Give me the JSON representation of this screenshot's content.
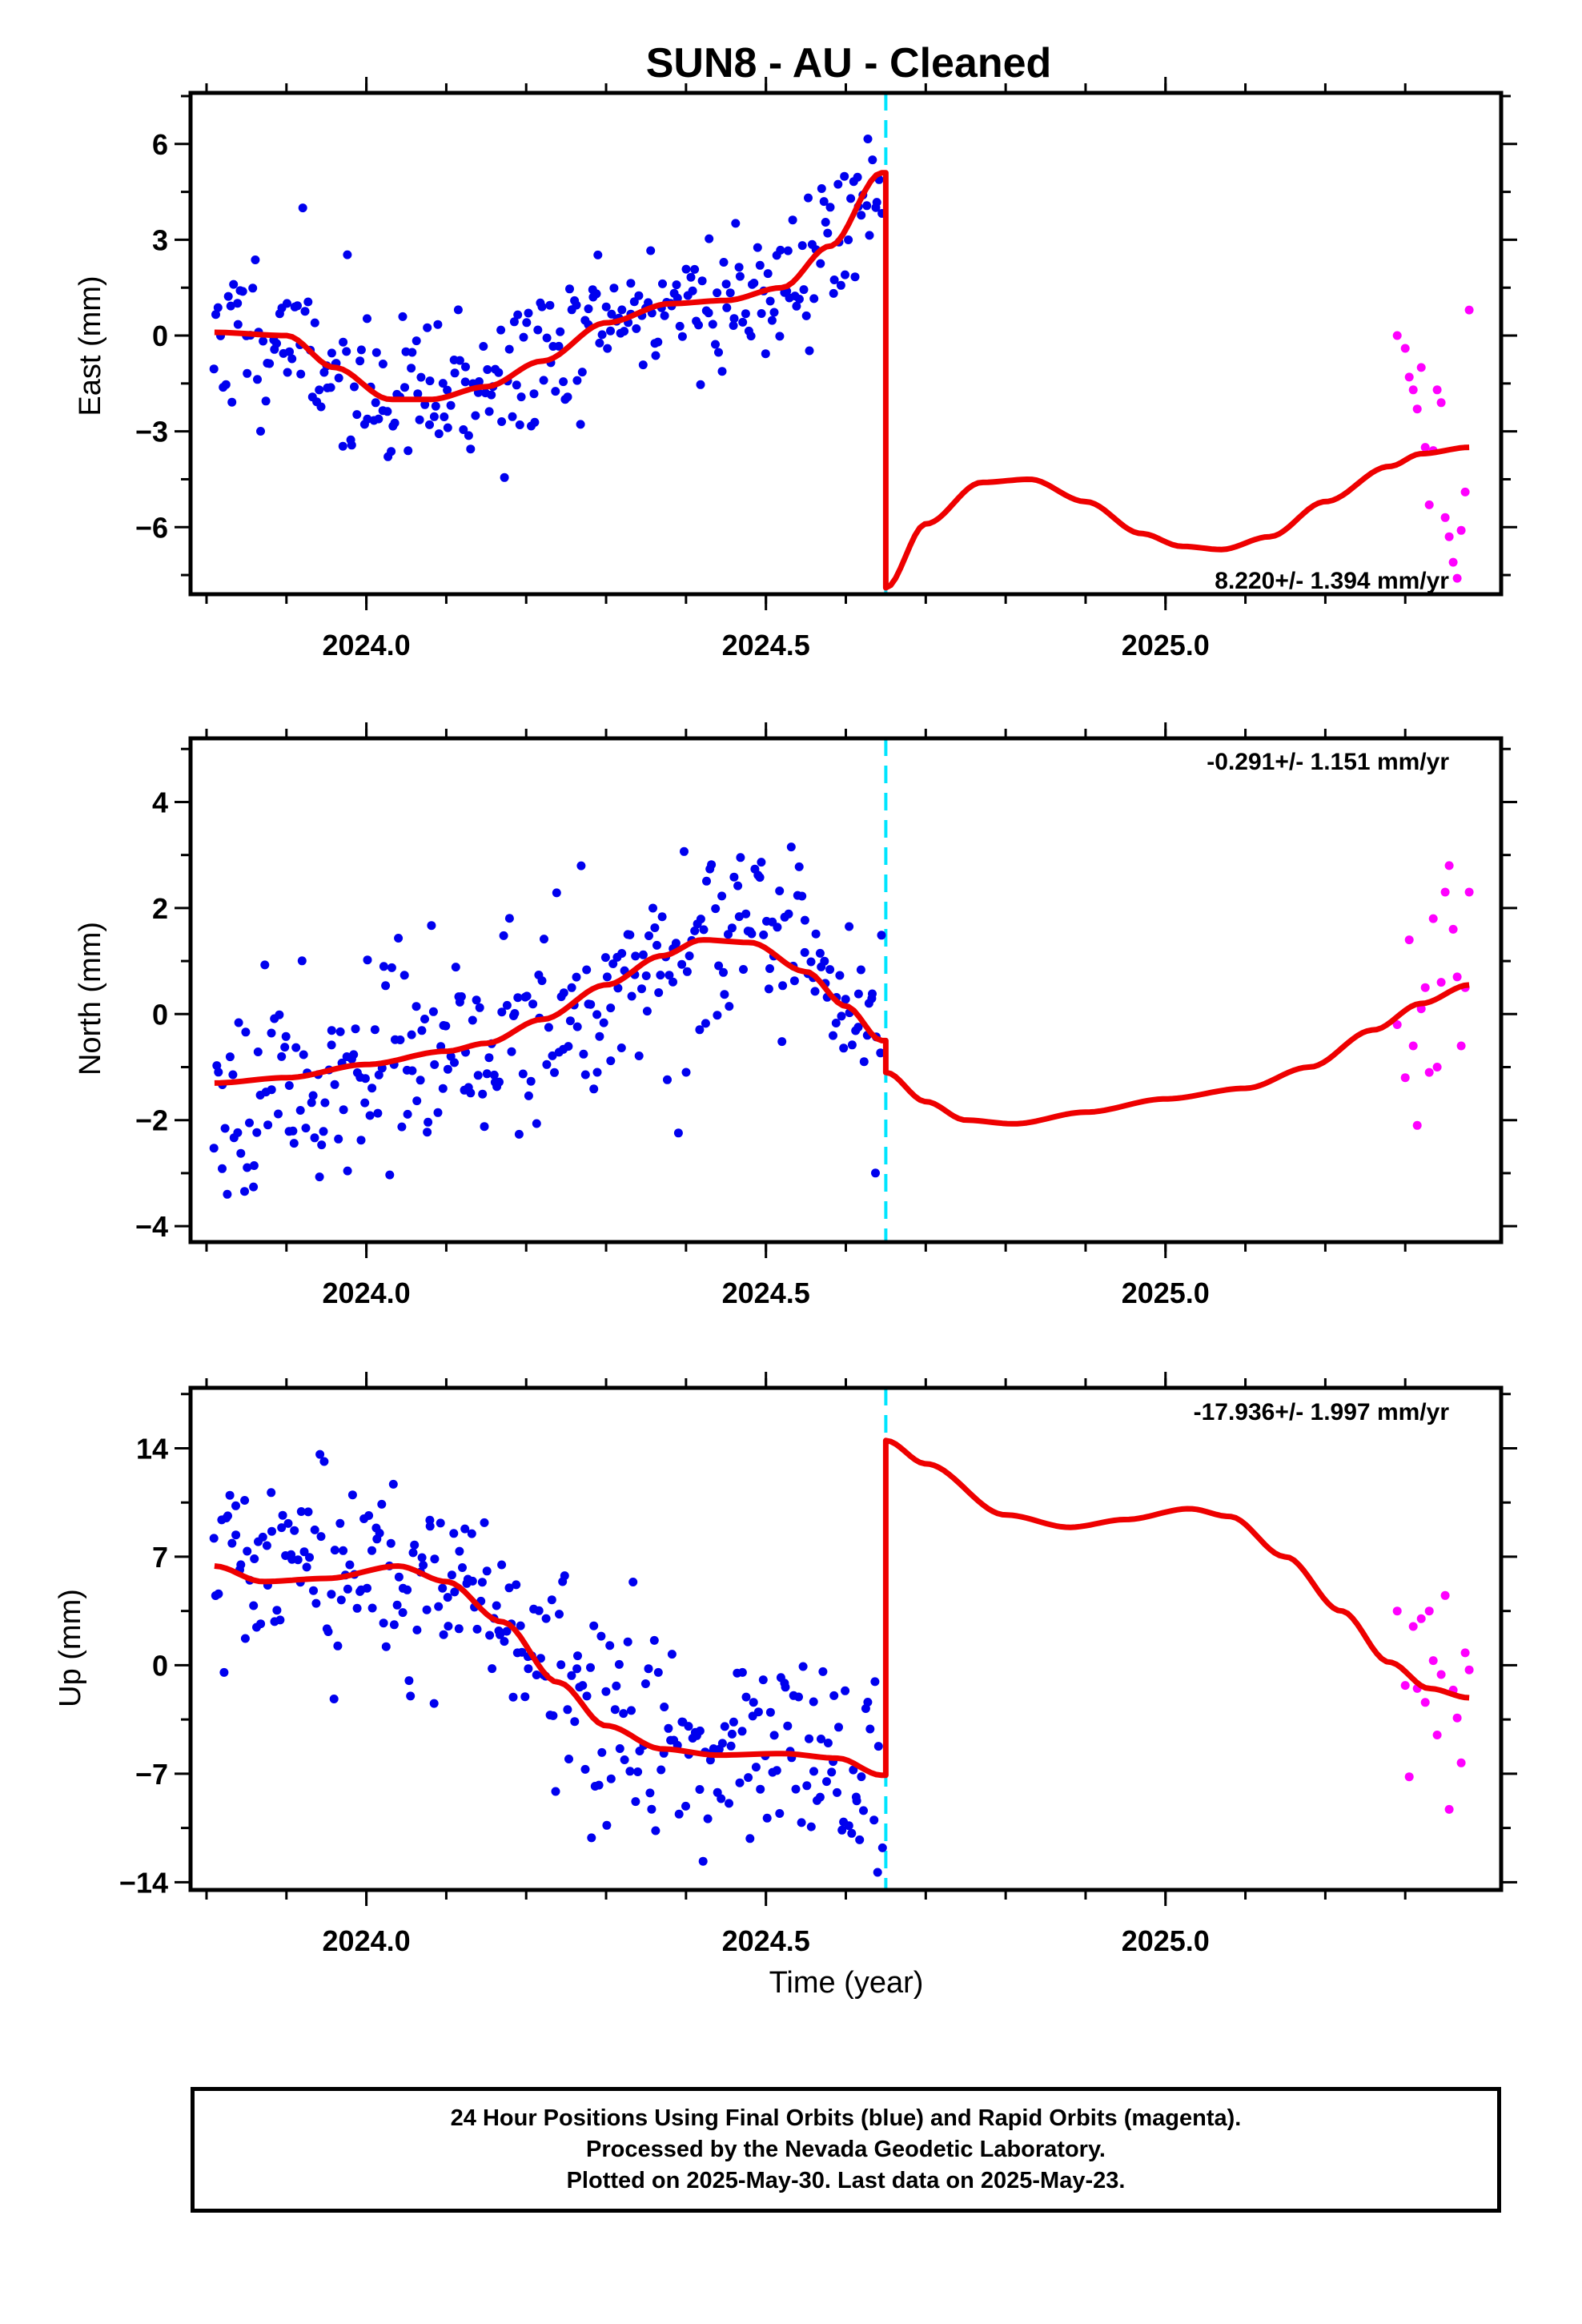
{
  "title": "SUN8  - AU - Cleaned",
  "xlabel": "Time (year)",
  "footer": [
    "24 Hour Positions Using Final Orbits (blue) and Rapid Orbits (magenta).",
    "Processed by the Nevada Geodetic Laboratory.",
    "Plotted on 2025-May-30. Last data on 2025-May-23."
  ],
  "colors": {
    "final": "#0000ee",
    "rapid": "#ff00ff",
    "model": "#ee0000",
    "break": "#00e5ff"
  },
  "chart_data": [
    {
      "type": "scatter",
      "ylabel": "East (mm)",
      "rate": "8.220+/- 1.394 mm/yr",
      "rate_position": "bottom-right",
      "xlim": [
        2023.78,
        2025.42
      ],
      "ylim": [
        -8.1,
        7.6
      ],
      "xticks": [
        2024.0,
        2024.5,
        2025.0
      ],
      "xticklabels": [
        "2024.0",
        "2024.5",
        "2025.0"
      ],
      "yticks": [
        -6,
        -3,
        0,
        3,
        6
      ],
      "yticklabels": [
        "-6",
        "-3",
        "0",
        "3",
        "6"
      ],
      "break_x": 2024.65,
      "final": {
        "x0": 2023.81,
        "x1": 2024.645,
        "n": 300,
        "ystd": 1.2,
        "seed": 11
      },
      "rapid_x": [
        2025.29,
        2025.3,
        2025.305,
        2025.31,
        2025.315,
        2025.32,
        2025.325,
        2025.33,
        2025.335,
        2025.34,
        2025.345,
        2025.35,
        2025.355,
        2025.36,
        2025.365,
        2025.37,
        2025.375,
        2025.38
      ],
      "rapid_y": [
        0.0,
        -0.4,
        -1.3,
        -1.7,
        -2.3,
        -1.0,
        -3.5,
        -5.3,
        -3.6,
        -1.7,
        -2.1,
        -5.7,
        -6.3,
        -7.1,
        -7.6,
        -6.1,
        -4.9,
        0.8
      ],
      "model_pre": [
        [
          2023.81,
          0.1
        ],
        [
          2023.9,
          0.0
        ],
        [
          2023.96,
          -1.0
        ],
        [
          2024.03,
          -2.0
        ],
        [
          2024.08,
          -2.0
        ],
        [
          2024.15,
          -1.6
        ],
        [
          2024.22,
          -0.8
        ],
        [
          2024.3,
          0.4
        ],
        [
          2024.38,
          1.0
        ],
        [
          2024.45,
          1.1
        ],
        [
          2024.52,
          1.5
        ],
        [
          2024.58,
          2.8
        ],
        [
          2024.645,
          5.1
        ]
      ],
      "model_post": [
        [
          2024.65,
          -7.9
        ],
        [
          2024.7,
          -5.9
        ],
        [
          2024.77,
          -4.6
        ],
        [
          2024.83,
          -4.5
        ],
        [
          2024.9,
          -5.2
        ],
        [
          2024.97,
          -6.2
        ],
        [
          2025.02,
          -6.6
        ],
        [
          2025.07,
          -6.7
        ],
        [
          2025.13,
          -6.3
        ],
        [
          2025.2,
          -5.2
        ],
        [
          2025.28,
          -4.1
        ],
        [
          2025.32,
          -3.7
        ],
        [
          2025.38,
          -3.5
        ]
      ]
    },
    {
      "type": "scatter",
      "ylabel": "North (mm)",
      "rate": "-0.291+/- 1.151 mm/yr",
      "rate_position": "top-right",
      "xlim": [
        2023.78,
        2025.42
      ],
      "ylim": [
        -4.3,
        5.2
      ],
      "xticks": [
        2024.0,
        2024.5,
        2025.0
      ],
      "xticklabels": [
        "2024.0",
        "2024.5",
        "2025.0"
      ],
      "yticks": [
        -4,
        -2,
        0,
        2,
        4
      ],
      "yticklabels": [
        "-4",
        "-2",
        "0",
        "2",
        "4"
      ],
      "break_x": 2024.65,
      "final": {
        "x0": 2023.81,
        "x1": 2024.645,
        "n": 300,
        "ystd": 0.95,
        "seed": 23
      },
      "rapid_x": [
        2025.29,
        2025.3,
        2025.305,
        2025.31,
        2025.315,
        2025.32,
        2025.325,
        2025.33,
        2025.335,
        2025.34,
        2025.345,
        2025.35,
        2025.355,
        2025.36,
        2025.365,
        2025.37,
        2025.375,
        2025.38
      ],
      "rapid_y": [
        -0.2,
        -1.2,
        1.4,
        -0.6,
        -2.1,
        0.1,
        0.5,
        -1.1,
        1.8,
        -1.0,
        0.6,
        2.3,
        2.8,
        1.6,
        0.7,
        -0.6,
        0.5,
        2.3
      ],
      "model_pre": [
        [
          2023.81,
          -1.3
        ],
        [
          2023.9,
          -1.2
        ],
        [
          2024.0,
          -0.95
        ],
        [
          2024.1,
          -0.7
        ],
        [
          2024.15,
          -0.55
        ],
        [
          2024.22,
          -0.1
        ],
        [
          2024.3,
          0.55
        ],
        [
          2024.37,
          1.1
        ],
        [
          2024.42,
          1.4
        ],
        [
          2024.48,
          1.35
        ],
        [
          2024.55,
          0.8
        ],
        [
          2024.6,
          0.15
        ],
        [
          2024.645,
          -0.5
        ]
      ],
      "model_post": [
        [
          2024.65,
          -1.1
        ],
        [
          2024.7,
          -1.65
        ],
        [
          2024.75,
          -2.0
        ],
        [
          2024.81,
          -2.07
        ],
        [
          2024.9,
          -1.85
        ],
        [
          2025.0,
          -1.6
        ],
        [
          2025.1,
          -1.4
        ],
        [
          2025.18,
          -1.0
        ],
        [
          2025.26,
          -0.3
        ],
        [
          2025.32,
          0.2
        ],
        [
          2025.38,
          0.55
        ]
      ]
    },
    {
      "type": "scatter",
      "ylabel": "Up (mm)",
      "rate": "-17.936+/- 1.997 mm/yr",
      "rate_position": "top-right",
      "xlim": [
        2023.78,
        2025.42
      ],
      "ylim": [
        -14.5,
        17.9
      ],
      "xticks": [
        2024.0,
        2024.5,
        2025.0
      ],
      "xticklabels": [
        "2024.0",
        "2024.5",
        "2025.0"
      ],
      "yticks": [
        -14,
        -7,
        0,
        7,
        14
      ],
      "yticklabels": [
        "-14",
        "-7",
        "0",
        "7",
        "14"
      ],
      "break_x": 2024.65,
      "final": {
        "x0": 2023.81,
        "x1": 2024.645,
        "n": 300,
        "ystd": 3.3,
        "seed": 37
      },
      "rapid_x": [
        2025.29,
        2025.3,
        2025.305,
        2025.31,
        2025.315,
        2025.32,
        2025.325,
        2025.33,
        2025.335,
        2025.34,
        2025.345,
        2025.35,
        2025.355,
        2025.36,
        2025.365,
        2025.37,
        2025.375,
        2025.38
      ],
      "rapid_y": [
        3.5,
        -1.3,
        -7.2,
        2.5,
        -1.5,
        3.0,
        -2.4,
        3.5,
        0.3,
        -4.5,
        -0.6,
        4.5,
        -9.3,
        -1.6,
        -3.4,
        -6.3,
        0.8,
        -0.3
      ],
      "model_pre": [
        [
          2023.81,
          6.4
        ],
        [
          2023.87,
          5.4
        ],
        [
          2023.95,
          5.6
        ],
        [
          2024.04,
          6.4
        ],
        [
          2024.1,
          5.4
        ],
        [
          2024.17,
          2.8
        ],
        [
          2024.24,
          -1.1
        ],
        [
          2024.3,
          -3.9
        ],
        [
          2024.37,
          -5.4
        ],
        [
          2024.44,
          -5.8
        ],
        [
          2024.52,
          -5.7
        ],
        [
          2024.59,
          -6.0
        ],
        [
          2024.645,
          -7.1
        ]
      ],
      "model_post": [
        [
          2024.65,
          14.5
        ],
        [
          2024.7,
          13.0
        ],
        [
          2024.8,
          9.7
        ],
        [
          2024.88,
          8.9
        ],
        [
          2024.95,
          9.4
        ],
        [
          2025.03,
          10.1
        ],
        [
          2025.08,
          9.6
        ],
        [
          2025.15,
          7.0
        ],
        [
          2025.22,
          3.5
        ],
        [
          2025.28,
          0.2
        ],
        [
          2025.33,
          -1.5
        ],
        [
          2025.38,
          -2.1
        ]
      ]
    }
  ]
}
